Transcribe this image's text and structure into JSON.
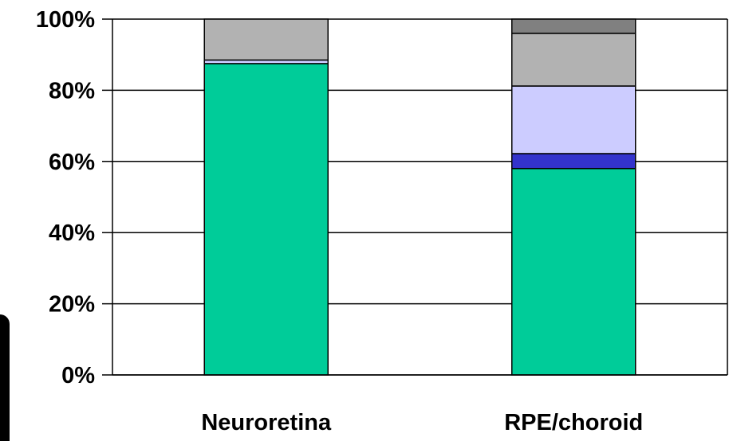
{
  "chart_data": {
    "type": "bar",
    "stacked": true,
    "categories": [
      "Neuroretina",
      "RPE/choroid"
    ],
    "series": [
      {
        "values": [
          87.5,
          58.0
        ],
        "color": "#00CC99"
      },
      {
        "values": [
          0.0,
          4.2
        ],
        "color": "#3333CC"
      },
      {
        "values": [
          1.0,
          19.0
        ],
        "color": "#CCCCFF"
      },
      {
        "values": [
          11.5,
          14.8
        ],
        "color": "#B2B2B2"
      },
      {
        "values": [
          0.0,
          4.0
        ],
        "color": "#808080"
      }
    ],
    "yticks": [
      "0%",
      "20%",
      "40%",
      "60%",
      "80%",
      "100%"
    ],
    "ylim": [
      0,
      100
    ],
    "grid": true,
    "legend": "none"
  }
}
